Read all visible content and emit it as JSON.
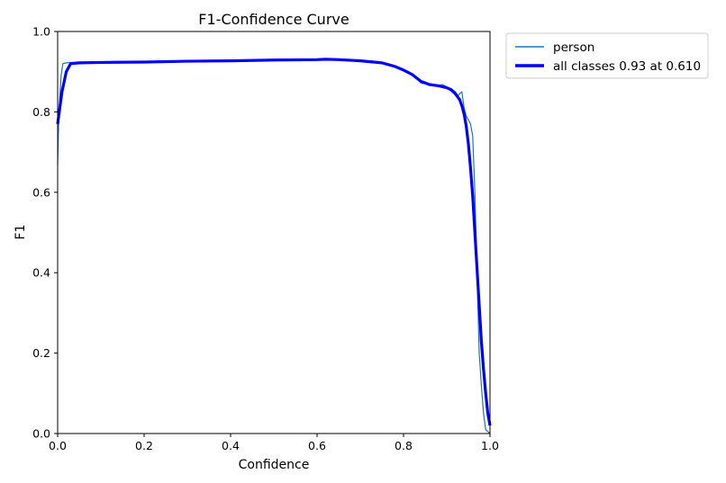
{
  "chart_data": {
    "type": "line",
    "title": "F1-Confidence Curve",
    "xlabel": "Confidence",
    "ylabel": "F1",
    "xlim": [
      0,
      1
    ],
    "ylim": [
      0,
      1
    ],
    "xticks": [
      "0.0",
      "0.2",
      "0.4",
      "0.6",
      "0.8",
      "1.0"
    ],
    "yticks": [
      "0.0",
      "0.2",
      "0.4",
      "0.6",
      "0.8",
      "1.0"
    ],
    "grid": false,
    "legend_position": "outside-top-right",
    "series": [
      {
        "name": "person",
        "color": "#1f77b4",
        "x": [
          0.0,
          0.003,
          0.008,
          0.012,
          0.02,
          0.03,
          0.05,
          0.1,
          0.2,
          0.3,
          0.4,
          0.5,
          0.6,
          0.7,
          0.75,
          0.78,
          0.8,
          0.82,
          0.83,
          0.84,
          0.845,
          0.85,
          0.86,
          0.87,
          0.88,
          0.89,
          0.9,
          0.91,
          0.92,
          0.925,
          0.93,
          0.935,
          0.94,
          0.945,
          0.95,
          0.955,
          0.96,
          0.965,
          0.97,
          0.975,
          0.98,
          0.985,
          0.99,
          1.0
        ],
        "y": [
          0.67,
          0.8,
          0.89,
          0.92,
          0.922,
          0.923,
          0.923,
          0.924,
          0.925,
          0.927,
          0.928,
          0.929,
          0.931,
          0.929,
          0.924,
          0.915,
          0.905,
          0.895,
          0.885,
          0.872,
          0.87,
          0.872,
          0.868,
          0.867,
          0.865,
          0.868,
          0.862,
          0.858,
          0.85,
          0.84,
          0.845,
          0.85,
          0.81,
          0.79,
          0.78,
          0.77,
          0.74,
          0.6,
          0.4,
          0.2,
          0.12,
          0.05,
          0.01,
          0.0
        ]
      },
      {
        "name": "all classes 0.93 at 0.610",
        "color": "#0000ff",
        "x": [
          0.0,
          0.005,
          0.01,
          0.02,
          0.03,
          0.05,
          0.1,
          0.2,
          0.3,
          0.4,
          0.5,
          0.6,
          0.62,
          0.65,
          0.7,
          0.75,
          0.78,
          0.8,
          0.82,
          0.84,
          0.86,
          0.88,
          0.9,
          0.91,
          0.92,
          0.93,
          0.935,
          0.94,
          0.945,
          0.95,
          0.955,
          0.96,
          0.965,
          0.97,
          0.975,
          0.98,
          0.985,
          0.99,
          0.995,
          1.0
        ],
        "y": [
          0.77,
          0.81,
          0.85,
          0.9,
          0.92,
          0.922,
          0.923,
          0.924,
          0.926,
          0.927,
          0.929,
          0.93,
          0.931,
          0.93,
          0.927,
          0.922,
          0.913,
          0.904,
          0.893,
          0.876,
          0.868,
          0.865,
          0.86,
          0.855,
          0.845,
          0.83,
          0.815,
          0.795,
          0.765,
          0.72,
          0.66,
          0.59,
          0.5,
          0.41,
          0.32,
          0.23,
          0.16,
          0.1,
          0.05,
          0.02
        ]
      }
    ]
  }
}
